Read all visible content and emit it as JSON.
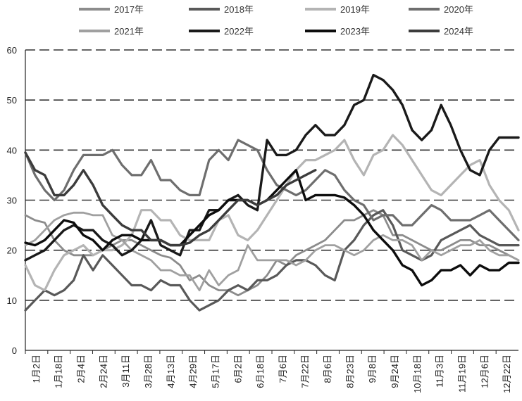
{
  "chart_data": {
    "type": "line",
    "title": "",
    "xlabel": "",
    "ylabel": "",
    "ylim": [
      0,
      60
    ],
    "yticks": [
      0,
      10,
      20,
      30,
      40,
      50,
      60
    ],
    "grid": "horizontal-dashed",
    "legend_position": "top",
    "x_tick_labels": [
      "1月2日",
      "1月18日",
      "2月4日",
      "2月24日",
      "3月11日",
      "3月28日",
      "4月13日",
      "4月29日",
      "5月17日",
      "6月2日",
      "6月18日",
      "7月6日",
      "7月22日",
      "8月6日",
      "8月23日",
      "9月8日",
      "9月24日",
      "10月18日",
      "11月3日",
      "11月19日",
      "12月6日",
      "12月22日"
    ],
    "series": [
      {
        "name": "2017年",
        "color": "#8c8c8c",
        "width": 2.8,
        "values": [
          27,
          26,
          25.5,
          22,
          20,
          19,
          19,
          19,
          20,
          21,
          22,
          22,
          21,
          20,
          19,
          18.5,
          17,
          14,
          15,
          13,
          12,
          12,
          11,
          12,
          13,
          15,
          18,
          17,
          19,
          20,
          21,
          22,
          24,
          26,
          26,
          27,
          28,
          27,
          23,
          23,
          22,
          21,
          20,
          20,
          21,
          22,
          22,
          21,
          21,
          20,
          19,
          18
        ]
      },
      {
        "name": "2018年",
        "color": "#595959",
        "width": 3.2,
        "values": [
          8,
          10,
          12,
          11,
          12,
          14,
          19,
          16,
          19,
          17,
          15,
          13,
          13,
          12,
          14,
          13,
          13,
          10,
          8,
          9,
          10,
          12,
          13,
          12,
          14,
          14,
          15,
          17,
          18,
          18,
          17,
          15,
          14,
          20,
          22,
          25,
          27,
          28,
          25,
          20,
          19,
          18,
          19,
          22,
          23,
          24,
          25,
          23,
          22,
          21,
          21,
          21
        ]
      },
      {
        "name": "2019年",
        "color": "#b4b4b4",
        "width": 3.2,
        "values": [
          17,
          13,
          12,
          16,
          19,
          20,
          21,
          19,
          20,
          20,
          21,
          23,
          28,
          28,
          26,
          26,
          23,
          22,
          22,
          22,
          26,
          27,
          23,
          22,
          24,
          27,
          30,
          33,
          36,
          38,
          38,
          39,
          40,
          42,
          38,
          35,
          39,
          40,
          43,
          41,
          38,
          35,
          32,
          31,
          33,
          35,
          37,
          38,
          33,
          30,
          28,
          24
        ]
      },
      {
        "name": "2020年",
        "color": "#6e6e6e",
        "width": 3.2,
        "values": [
          39.5,
          35,
          32,
          30,
          32,
          36,
          39,
          39,
          39,
          40,
          37,
          35,
          35,
          38,
          34,
          34,
          32,
          31,
          31,
          38,
          40,
          38,
          42,
          41,
          40,
          36,
          33,
          32,
          31,
          32,
          34,
          36,
          35,
          32,
          30,
          29,
          26,
          27,
          27,
          25,
          25,
          27,
          29,
          28,
          26,
          26,
          26,
          27,
          28,
          26,
          24,
          22
        ]
      },
      {
        "name": "2021年",
        "color": "#a0a0a0",
        "width": 2.8,
        "values": [
          21,
          22,
          24,
          26,
          27,
          27.5,
          27.5,
          27,
          27,
          23,
          22,
          20,
          19,
          18,
          16,
          16,
          15,
          15,
          12,
          16,
          13,
          15,
          16,
          21,
          18,
          18,
          18,
          18,
          17,
          18,
          20,
          21,
          21,
          20,
          19,
          20,
          22,
          23,
          22,
          22,
          21,
          18,
          20,
          19,
          20,
          21,
          21,
          22,
          20,
          19,
          19,
          18
        ]
      },
      {
        "name": "2022年",
        "color": "#1a1a1a",
        "width": 3.4,
        "values": [
          18,
          19,
          20,
          22,
          24,
          25,
          24,
          24,
          22,
          21,
          19,
          20,
          22,
          26,
          21,
          20,
          19,
          24,
          24,
          28,
          28,
          30,
          31,
          29,
          28,
          42,
          39,
          39,
          40,
          43,
          45,
          43,
          43,
          45,
          49,
          50,
          55,
          54,
          52,
          49,
          44,
          42,
          44,
          49,
          45,
          40,
          36,
          35,
          40,
          42.5,
          42.5,
          42.5
        ]
      },
      {
        "name": "2023年",
        "color": "#0d0d0d",
        "width": 3.4,
        "values": [
          21.5,
          21,
          22,
          24,
          26,
          25.5,
          23,
          22,
          20,
          22,
          23,
          23,
          22,
          22,
          22,
          21,
          21,
          23,
          25,
          27,
          28,
          30,
          30,
          30,
          29,
          30,
          32,
          34,
          36,
          30,
          31,
          31,
          31,
          30.5,
          29,
          27,
          24,
          22,
          20,
          17,
          16,
          13,
          14,
          16,
          16,
          17,
          15,
          17,
          16,
          16,
          17.5,
          17.5
        ]
      },
      {
        "name": "2024年",
        "color": "#3c3c3c",
        "width": 3.4,
        "values": [
          39.5,
          36,
          35,
          31,
          31,
          33,
          36,
          33,
          29,
          27,
          25,
          24,
          24,
          22,
          22,
          21,
          21,
          21.5,
          23,
          24,
          26,
          28,
          30,
          30,
          29,
          30,
          31,
          33,
          34,
          35,
          36,
          null,
          null,
          null,
          null,
          null,
          null,
          null,
          null,
          null,
          null,
          null,
          null,
          null,
          null,
          null,
          null,
          null,
          null,
          null,
          null,
          null
        ]
      }
    ]
  }
}
